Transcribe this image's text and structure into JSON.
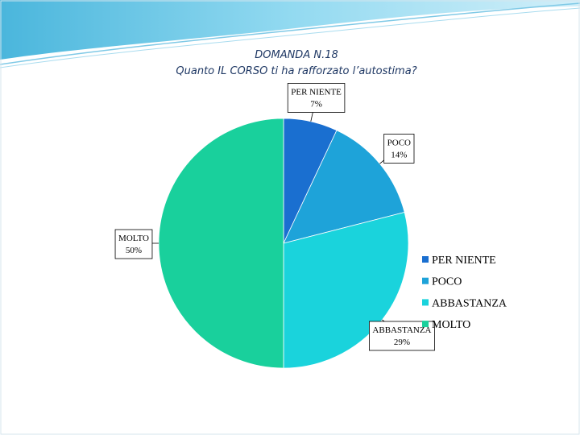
{
  "chart_data": {
    "type": "pie",
    "title": "DOMANDA N.18",
    "subtitle": "Quanto IL CORSO ti ha rafforzato l’autostima?",
    "categories": [
      "PER NIENTE",
      "POCO",
      "ABBASTANZA",
      "MOLTO"
    ],
    "values": [
      7,
      14,
      29,
      50
    ],
    "value_labels": [
      "7%",
      "14%",
      "29%",
      "50%"
    ],
    "colors": [
      "#1a6fd0",
      "#1ea3d9",
      "#1ad3dc",
      "#19d09c"
    ],
    "legend": "right"
  }
}
